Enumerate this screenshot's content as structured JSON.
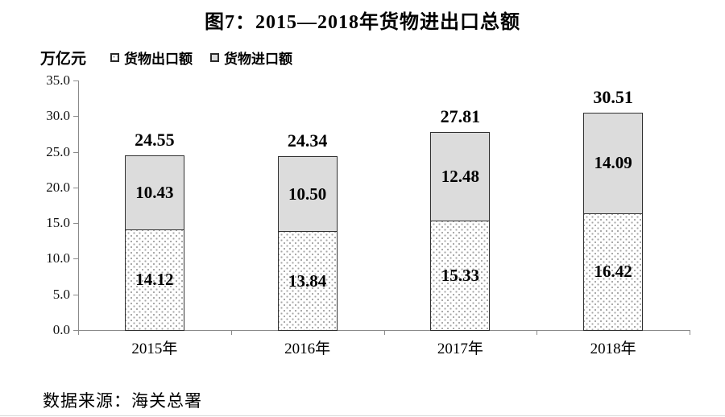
{
  "title": "图7：2015—2018年货物进出口总额",
  "axis_unit_label": "万亿元",
  "legend": {
    "items": [
      {
        "label": "货物出口额",
        "swatch": "dotted-white-square-icon"
      },
      {
        "label": "货物进口额",
        "swatch": "gray-square-icon"
      }
    ]
  },
  "source_note": "数据来源：海关总署",
  "chart_data": {
    "type": "bar",
    "stacked": true,
    "title": "图7：2015—2018年货物进出口总额",
    "ylabel": "万亿元",
    "xlabel": "",
    "ylim": [
      0,
      35
    ],
    "ytick_step": 5,
    "yticks": [
      "35.0",
      "30.0",
      "25.0",
      "20.0",
      "15.0",
      "10.0",
      "5.0",
      "0.0"
    ],
    "grid": false,
    "legend_position": "top-left",
    "categories": [
      "2015年",
      "2016年",
      "2017年",
      "2018年"
    ],
    "series": [
      {
        "name": "货物出口额",
        "values": [
          14.12,
          13.84,
          15.33,
          16.42
        ],
        "fill": "dotted-white"
      },
      {
        "name": "货物进口额",
        "values": [
          10.43,
          10.5,
          12.48,
          14.09
        ],
        "fill": "light-gray"
      }
    ],
    "totals": [
      24.55,
      24.34,
      27.81,
      30.51
    ],
    "colors": {
      "import_fill": "#dcdcdc",
      "export_fill": "#ffffff",
      "export_dot": "#9e9e9e",
      "bar_border": "#303030",
      "axis": "#8a8a8a",
      "text": "#000000"
    }
  }
}
